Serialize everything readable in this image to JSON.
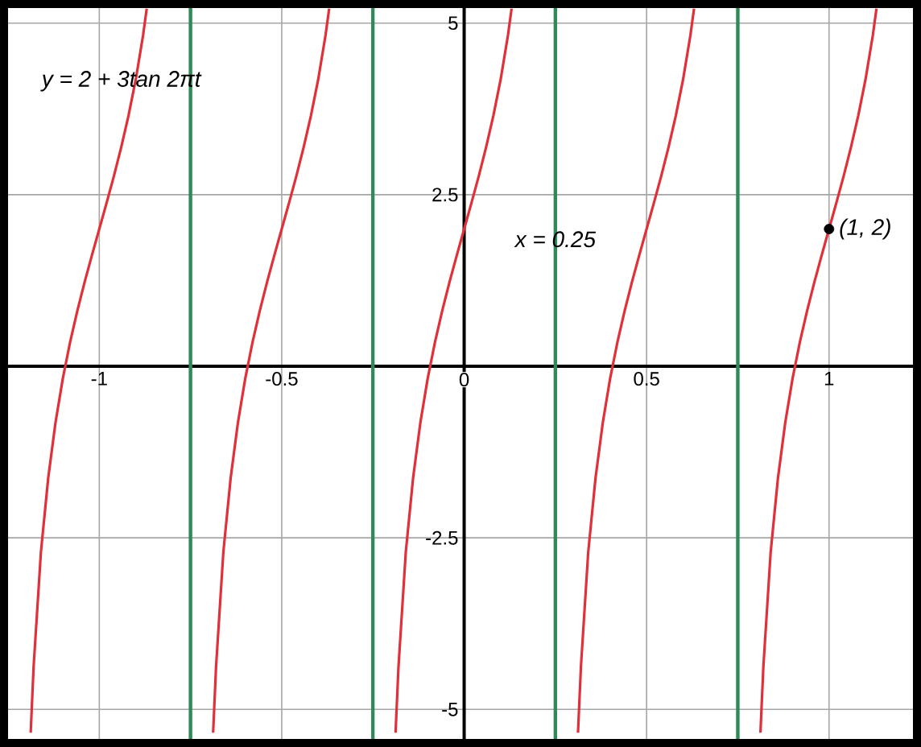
{
  "chart_data": {
    "type": "line",
    "xlim": [
      -1.25,
      1.23
    ],
    "ylim": [
      -5.43,
      5.22
    ],
    "xticks": [
      -1,
      -0.5,
      0,
      0.5,
      1
    ],
    "yticks": [
      -5,
      -2.5,
      2.5,
      5
    ],
    "grid": true,
    "series": [
      {
        "color": "#e0303a",
        "x": [
          -1.188,
          -1.18,
          -1.16,
          -1.14,
          -1.12,
          -1.1,
          -1.08,
          -1.06,
          -1.04,
          -1.02,
          -1.0,
          -0.98,
          -0.96,
          -0.94,
          -0.92,
          -0.9,
          -0.88,
          -0.87
        ],
        "values": [
          -5.34,
          -4.38,
          -2.71,
          -1.63,
          -0.82,
          -0.18,
          0.35,
          0.81,
          1.23,
          1.62,
          2,
          2.38,
          2.77,
          3.19,
          3.65,
          4.18,
          4.82,
          5.21
        ]
      },
      {
        "color": "#e0303a",
        "x": [
          -0.688,
          -0.68,
          -0.66,
          -0.64,
          -0.62,
          -0.6,
          -0.58,
          -0.56,
          -0.54,
          -0.52,
          -0.5,
          -0.48,
          -0.46,
          -0.44,
          -0.42,
          -0.4,
          -0.38,
          -0.37
        ],
        "values": [
          -5.34,
          -4.38,
          -2.71,
          -1.63,
          -0.82,
          -0.18,
          0.35,
          0.81,
          1.23,
          1.62,
          2,
          2.38,
          2.77,
          3.19,
          3.65,
          4.18,
          4.82,
          5.21
        ]
      },
      {
        "color": "#e0303a",
        "x": [
          -0.188,
          -0.18,
          -0.16,
          -0.14,
          -0.12,
          -0.1,
          -0.08,
          -0.06,
          -0.04,
          -0.02,
          0.0,
          0.02,
          0.04,
          0.06,
          0.08,
          0.1,
          0.12,
          0.13
        ],
        "values": [
          -5.34,
          -4.38,
          -2.71,
          -1.63,
          -0.82,
          -0.18,
          0.35,
          0.81,
          1.23,
          1.62,
          2,
          2.38,
          2.77,
          3.19,
          3.65,
          4.18,
          4.82,
          5.21
        ]
      },
      {
        "color": "#e0303a",
        "x": [
          0.312,
          0.32,
          0.34,
          0.36,
          0.38,
          0.4,
          0.42,
          0.44,
          0.46,
          0.48,
          0.5,
          0.52,
          0.54,
          0.56,
          0.58,
          0.6,
          0.62,
          0.63
        ],
        "values": [
          -5.34,
          -4.38,
          -2.71,
          -1.63,
          -0.82,
          -0.18,
          0.35,
          0.81,
          1.23,
          1.62,
          2,
          2.38,
          2.77,
          3.19,
          3.65,
          4.18,
          4.82,
          5.21
        ]
      },
      {
        "color": "#e0303a",
        "x": [
          0.812,
          0.82,
          0.84,
          0.86,
          0.88,
          0.9,
          0.92,
          0.94,
          0.96,
          0.98,
          1.0,
          1.02,
          1.04,
          1.06,
          1.08,
          1.1,
          1.12,
          1.13
        ],
        "values": [
          -5.34,
          -4.38,
          -2.71,
          -1.63,
          -0.82,
          -0.18,
          0.35,
          0.81,
          1.23,
          1.62,
          2,
          2.38,
          2.77,
          3.19,
          3.65,
          4.18,
          4.82,
          5.21
        ]
      },
      {
        "type": "scatter",
        "color": "#000000",
        "marker": "circle",
        "x": [
          1
        ],
        "values": [
          2
        ]
      }
    ],
    "ref_lines": [
      {
        "axis": "x",
        "value": -0.75,
        "color": "#2e8b57"
      },
      {
        "axis": "x",
        "value": -0.25,
        "color": "#2e8b57"
      },
      {
        "axis": "x",
        "value": 0.25,
        "color": "#2e8b57"
      },
      {
        "axis": "x",
        "value": 0.75,
        "color": "#2e8b57"
      }
    ],
    "annotations": [
      "y = 2 + 3tan 2πt",
      {
        "text": "x = 0.25",
        "x": 0.25,
        "y": 1.85
      },
      {
        "text": "(1, 2)",
        "x": 1,
        "y": 2
      }
    ]
  }
}
